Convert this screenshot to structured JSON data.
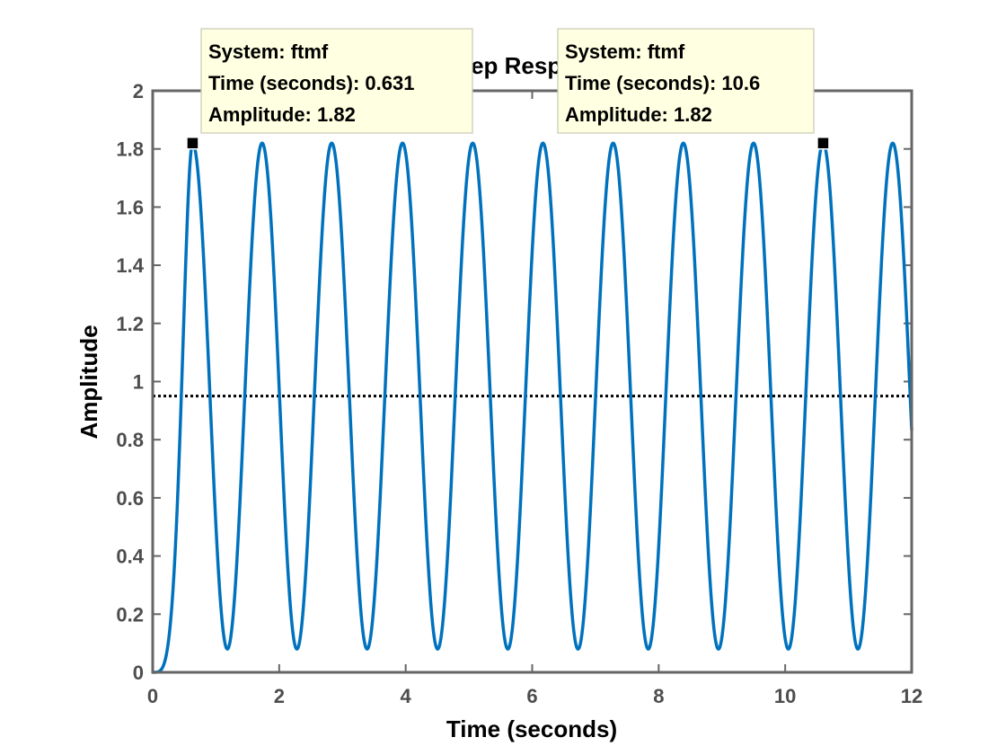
{
  "chart_data": {
    "type": "line",
    "title": "Step Response",
    "xlabel": "Time (seconds)",
    "ylabel": "Amplitude",
    "xlim": [
      0,
      12
    ],
    "ylim": [
      0,
      2
    ],
    "xticks": [
      0,
      2,
      4,
      6,
      8,
      10,
      12
    ],
    "yticks": [
      0,
      0.2,
      0.4,
      0.6,
      0.8,
      1,
      1.2,
      1.4,
      1.6,
      1.8,
      2
    ],
    "grid": false,
    "series": [
      {
        "system": "ftmf",
        "color": "#0072BD",
        "response": {
          "final_value": 0.95,
          "peak": 1.82,
          "trough": 0.08,
          "first_peak_time": 0.631,
          "peak_times": [
            0.631,
            1.73,
            2.83,
            3.95,
            5.06,
            6.17,
            7.28,
            8.39,
            9.5,
            10.6,
            11.7
          ],
          "period": 1.105,
          "value_at_end": 1.0
        }
      }
    ],
    "reference_line": {
      "y": 0.95,
      "style": "dotted",
      "color": "#000000"
    },
    "datatips": [
      {
        "system_label": "System: ftmf",
        "time_label": "Time (seconds): 0.631",
        "amplitude_label": "Amplitude: 1.82",
        "x": 0.631,
        "y": 1.82
      },
      {
        "system_label": "System: ftmf",
        "time_label": "Time (seconds): 10.6",
        "amplitude_label": "Amplitude: 1.82",
        "x": 10.6,
        "y": 1.82
      }
    ]
  }
}
